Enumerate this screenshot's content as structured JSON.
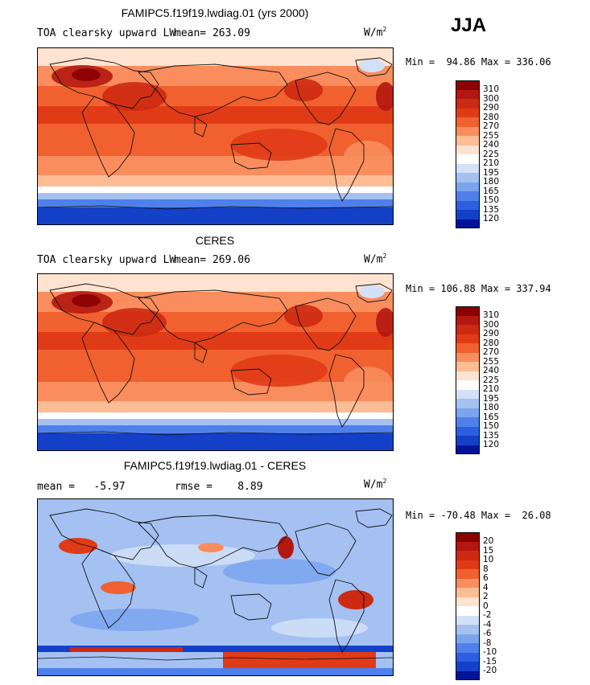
{
  "season": "JJA",
  "units": {
    "base": "W/m",
    "exp": "2"
  },
  "panels": [
    {
      "title": "FAMIPC5.f19f19.lwdiag.01 (yrs 2000)",
      "left_label": "TOA clearsky upward LW",
      "mean_label": "mean= 263.09",
      "minmax": "Min =  94.86 Max = 336.06",
      "levels": [
        "310",
        "300",
        "290",
        "280",
        "270",
        "255",
        "240",
        "225",
        "210",
        "195",
        "180",
        "165",
        "150",
        "135",
        "120"
      ],
      "colors": [
        "#8b0000",
        "#b2180f",
        "#cc2a12",
        "#e03b17",
        "#f0612f",
        "#f98d5e",
        "#fcbc94",
        "#fde3d0",
        "#ffffff",
        "#d2e1f7",
        "#a4c1f2",
        "#7aa4ee",
        "#4f80ea",
        "#2c5fe0",
        "#1440c8",
        "#00139a"
      ]
    },
    {
      "title": "CERES",
      "left_label": "TOA clearsky upward LW",
      "mean_label": "mean= 269.06",
      "minmax": "Min = 106.88 Max = 337.94",
      "levels": [
        "310",
        "300",
        "290",
        "280",
        "270",
        "255",
        "240",
        "225",
        "210",
        "195",
        "180",
        "165",
        "150",
        "135",
        "120"
      ],
      "colors": [
        "#8b0000",
        "#b2180f",
        "#cc2a12",
        "#e03b17",
        "#f0612f",
        "#f98d5e",
        "#fcbc94",
        "#fde3d0",
        "#ffffff",
        "#d2e1f7",
        "#a4c1f2",
        "#7aa4ee",
        "#4f80ea",
        "#2c5fe0",
        "#1440c8",
        "#00139a"
      ]
    },
    {
      "title": "FAMIPC5.f19f19.lwdiag.01 - CERES",
      "left_label": "mean =   -5.97",
      "mean_label": "rmse =    8.89",
      "minmax": "Min = -70.48 Max =  26.08",
      "levels": [
        "20",
        "15",
        "10",
        "8",
        "6",
        "4",
        "2",
        "0",
        "-2",
        "-4",
        "-6",
        "-8",
        "-10",
        "-15",
        "-20"
      ],
      "colors": [
        "#8b0000",
        "#b2180f",
        "#cc2a12",
        "#e03b17",
        "#f0612f",
        "#f98d5e",
        "#fcbc94",
        "#fde3d0",
        "#ffffff",
        "#d2e1f7",
        "#a4c1f2",
        "#7aa4ee",
        "#4f80ea",
        "#2c5fe0",
        "#1440c8",
        "#00139a"
      ]
    }
  ]
}
